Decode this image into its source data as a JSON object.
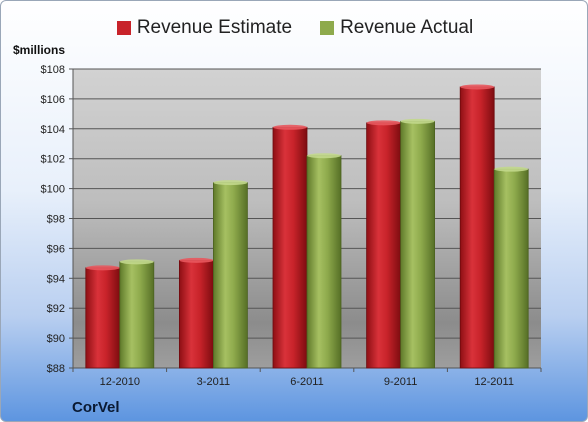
{
  "company": "CorVel",
  "unit_label": "$millions",
  "colors": {
    "estimate": "#c8232a",
    "actual": "#8eaa4c"
  },
  "chart_data": {
    "type": "bar",
    "categories": [
      "12-2010",
      "3-2011",
      "6-2011",
      "9-2011",
      "12-2011"
    ],
    "series": [
      {
        "name": "Revenue Estimate",
        "values": [
          94.7,
          95.2,
          104.1,
          104.4,
          106.8
        ]
      },
      {
        "name": "Revenue Actual",
        "values": [
          95.1,
          100.4,
          102.2,
          104.5,
          101.3
        ]
      }
    ],
    "ylabel": "$millions",
    "ylim": [
      88,
      108
    ],
    "yticks": [
      "$88",
      "$90",
      "$92",
      "$94",
      "$96",
      "$98",
      "$100",
      "$102",
      "$104",
      "$106",
      "$108"
    ],
    "grid": true,
    "legend": "top-center"
  }
}
